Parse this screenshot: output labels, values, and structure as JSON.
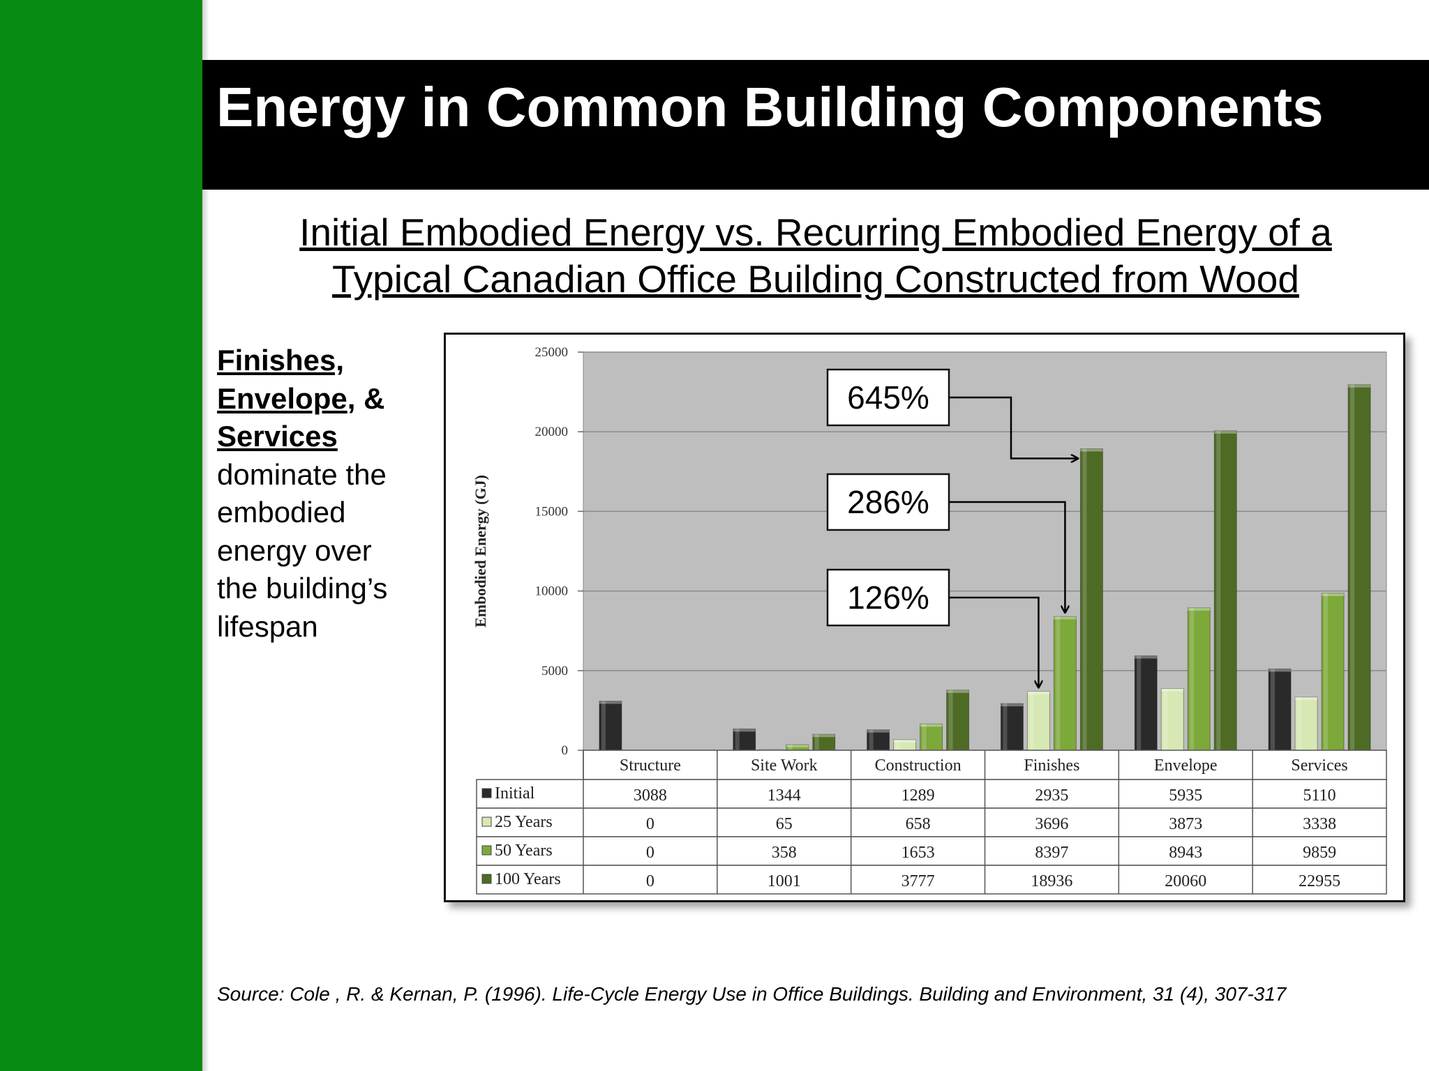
{
  "slide": {
    "title": "Energy in Common Building Components",
    "subtitle_line1": "Initial Embodied Energy vs. Recurring Embodied Energy of a",
    "subtitle_line2": "Typical Canadian Office Building Constructed from Wood",
    "side_bold1": "Finishes,",
    "side_bold2": "Envelope",
    "side_amp": ", &",
    "side_bold3": "Services",
    "side_rest": "dominate the embodied energy over the building’s lifespan",
    "source": "Source: Cole , R. & Kernan, P. (1996). Life-Cycle Energy Use in Office Buildings. Building and Environment, 31 (4), 307-317"
  },
  "colors": {
    "sidebar": "#078a11",
    "plot_bg": "#bebebe",
    "initial": "#2a2a2a",
    "y25": "#d7e8b4",
    "y50": "#7da83a",
    "y100": "#4e6b25"
  },
  "chart_data": {
    "type": "bar",
    "ylabel": "Embodied Energy (GJ)",
    "ylim": [
      0,
      25000
    ],
    "yticks": [
      0,
      5000,
      10000,
      15000,
      20000,
      25000
    ],
    "grid": true,
    "legend": "data-table",
    "categories": [
      "Structure",
      "Site Work",
      "Construction",
      "Finishes",
      "Envelope",
      "Services"
    ],
    "series": [
      {
        "name": "Initial",
        "values": [
          3088,
          1344,
          1289,
          2935,
          5935,
          5110
        ]
      },
      {
        "name": "25 Years",
        "values": [
          0,
          65,
          658,
          3696,
          3873,
          3338
        ]
      },
      {
        "name": "50 Years",
        "values": [
          0,
          358,
          1653,
          8397,
          8943,
          9859
        ]
      },
      {
        "name": "100 Years",
        "values": [
          0,
          1001,
          3777,
          18936,
          20060,
          22955
        ]
      }
    ],
    "annotations": [
      {
        "text": "645%",
        "category": "Finishes",
        "series": "100 Years"
      },
      {
        "text": "286%",
        "category": "Finishes",
        "series": "50 Years"
      },
      {
        "text": "126%",
        "category": "Finishes",
        "series": "25 Years"
      }
    ]
  }
}
